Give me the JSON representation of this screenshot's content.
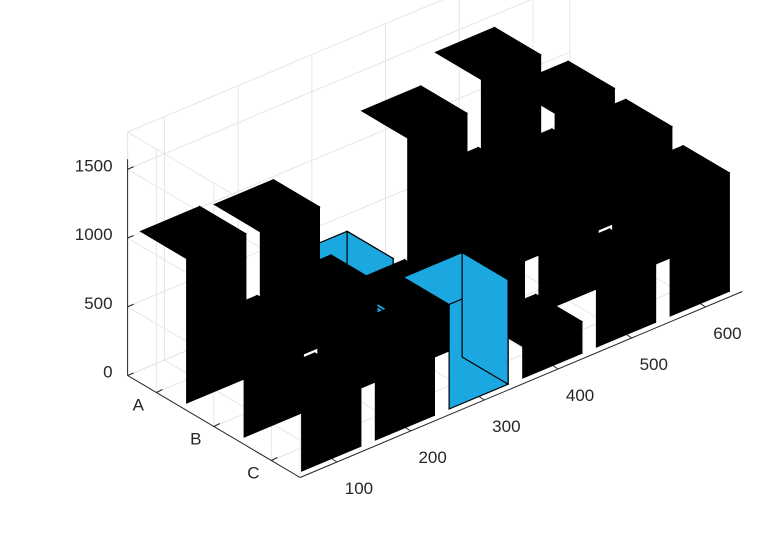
{
  "chart_data": {
    "type": "bar3",
    "x_ticks": [
      "100",
      "200",
      "300",
      "400",
      "500",
      "600"
    ],
    "y_ticks": [
      "A",
      "B",
      "C"
    ],
    "z_ticks": [
      "0",
      "500",
      "1000",
      "1500"
    ],
    "zlim": [
      0,
      1500
    ],
    "grid": true,
    "colors": {
      "bar": "#000000",
      "highlight": "#1ba8e0",
      "edge": "#000000",
      "grid": "#e6e6e6",
      "axis": "#262626"
    },
    "bars": [
      {
        "x": "100",
        "y": "A",
        "z": 1050
      },
      {
        "x": "100",
        "y": "B",
        "z": 650
      },
      {
        "x": "100",
        "y": "C",
        "z": 480
      },
      {
        "x": "200",
        "y": "A",
        "z": 1020
      },
      {
        "x": "200",
        "y": "B",
        "z": 720
      },
      {
        "x": "200",
        "y": "C",
        "z": 580
      },
      {
        "x": "300",
        "y": "A",
        "z": 420,
        "highlight": true
      },
      {
        "x": "300",
        "y": "B",
        "z": 460
      },
      {
        "x": "300",
        "y": "C",
        "z": 760,
        "highlight": true
      },
      {
        "x": "400",
        "y": "A",
        "z": 1250
      },
      {
        "x": "400",
        "y": "B",
        "z": 1050
      },
      {
        "x": "400",
        "y": "C",
        "z": 230
      },
      {
        "x": "500",
        "y": "A",
        "z": 1450
      },
      {
        "x": "500",
        "y": "B",
        "z": 960
      },
      {
        "x": "500",
        "y": "C",
        "z": 480
      },
      {
        "x": "600",
        "y": "A",
        "z": 980
      },
      {
        "x": "600",
        "y": "B",
        "z": 950
      },
      {
        "x": "600",
        "y": "C",
        "z": 860
      }
    ]
  }
}
